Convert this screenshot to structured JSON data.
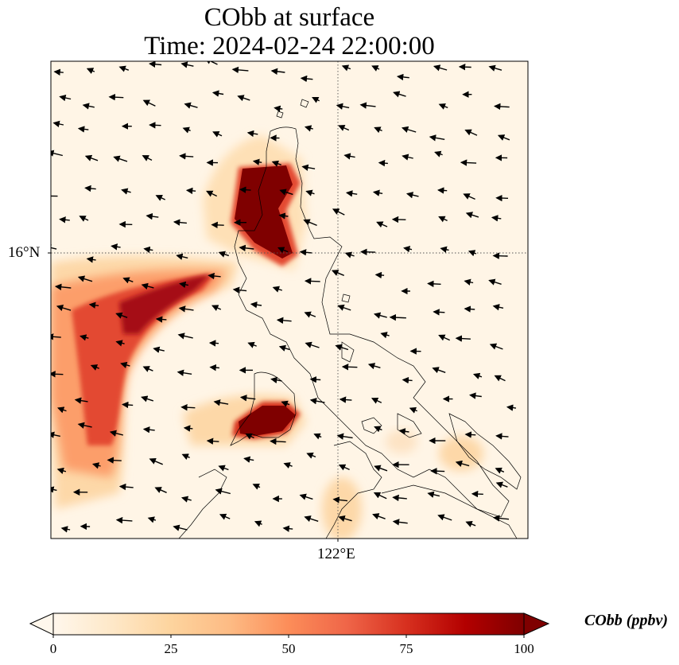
{
  "title_line1": "CObb at surface",
  "title_line2": "Time: 2024-02-24 22:00:00",
  "lat_label": "16°N",
  "lon_label": "122°E",
  "colorbar": {
    "label": "CObb (ppbv)",
    "ticks": [
      "0",
      "25",
      "50",
      "75",
      "100"
    ],
    "min": 0,
    "max": 100,
    "extend": "both",
    "colormap": "OrRd",
    "colors": [
      "#fff7ec",
      "#fee8c8",
      "#fdd49e",
      "#fdbb84",
      "#fc8d59",
      "#ef6548",
      "#d7301f",
      "#b30000",
      "#7f0000"
    ]
  },
  "map": {
    "gridlines": "dotted",
    "wind_vectors": "black arrows, mostly from the northeast",
    "background": "#fff5e6"
  }
}
